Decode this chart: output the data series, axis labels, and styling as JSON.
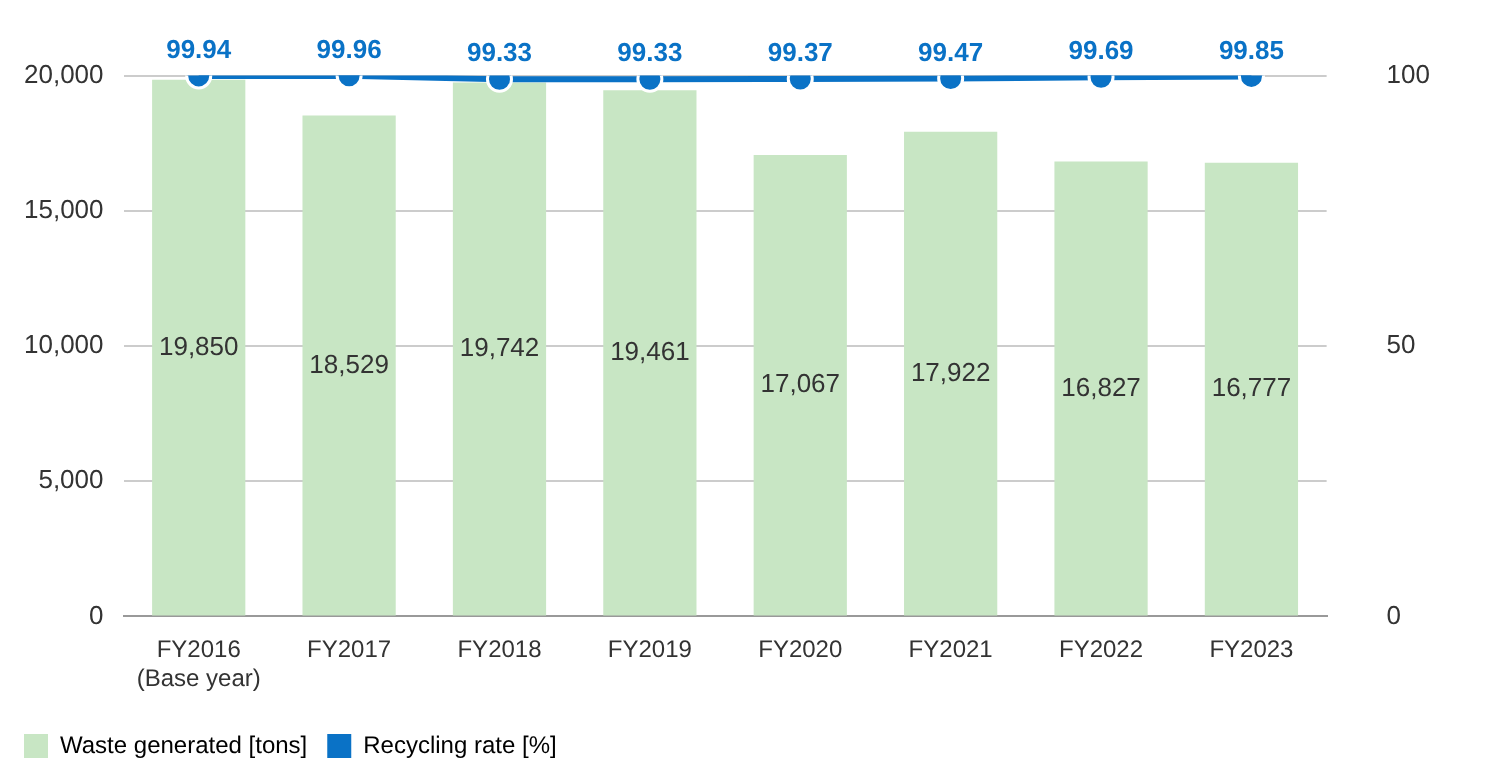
{
  "chart_data": {
    "type": "bar",
    "categories": [
      "FY2016\n(Base year)",
      "FY2017",
      "FY2018",
      "FY2019",
      "FY2020",
      "FY2021",
      "FY2022",
      "FY2023"
    ],
    "series": [
      {
        "name": "Waste generated [tons]",
        "color": "#c8e6c4",
        "values": [
          19850,
          18529,
          19742,
          19461,
          17067,
          17922,
          16827,
          16777
        ],
        "value_labels": [
          "19,850",
          "18,529",
          "19,742",
          "19,461",
          "17,067",
          "17,922",
          "16,827",
          "16,777"
        ]
      },
      {
        "name": "Recycling rate [%]",
        "type": "line",
        "axis": "y2",
        "color": "#0a72c6",
        "values": [
          99.94,
          99.96,
          99.33,
          99.33,
          99.37,
          99.47,
          99.69,
          99.85
        ],
        "value_labels": [
          "99.94",
          "99.96",
          "99.33",
          "99.33",
          "99.37",
          "99.47",
          "99.69",
          "99.85"
        ]
      }
    ],
    "ylim": [
      0,
      20000
    ],
    "yticks": [
      0,
      {
        "value": 5000,
        "label": "5,000"
      },
      {
        "value": 10000,
        "label": "10,000"
      },
      {
        "value": 15000,
        "label": "15,000"
      },
      {
        "value": 20000,
        "label": "20,000"
      }
    ],
    "y2lim": [
      0,
      100
    ],
    "y2ticks": [
      0,
      50,
      100
    ],
    "grid": "y",
    "legend": "bottom left",
    "marker": "circle"
  }
}
